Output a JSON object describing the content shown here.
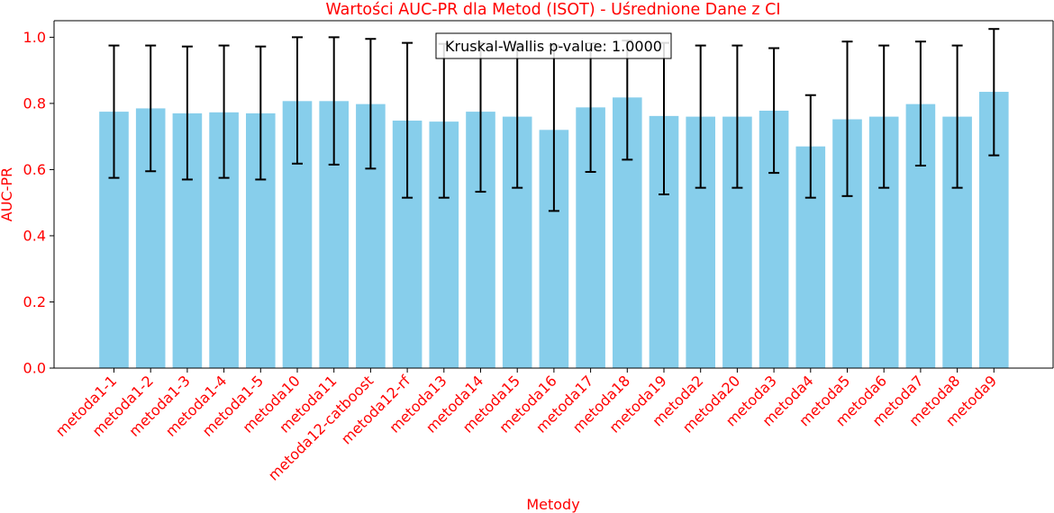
{
  "chart_data": {
    "type": "bar",
    "title": "Wartości AUC-PR dla Metod (ISOT) - Uśrednione Dane z CI",
    "xlabel": "Metody",
    "ylabel": "AUC-PR",
    "ylim": [
      0,
      1.05
    ],
    "yticks": [
      "0.0",
      "0.2",
      "0.4",
      "0.6",
      "0.8",
      "1.0"
    ],
    "grid": false,
    "annotation": "Kruskal-Wallis p-value: 1.0000",
    "colors": {
      "bar": "#87ceeb",
      "error_bar": "#000000",
      "label_text": "#ff0000",
      "axis": "#000000"
    },
    "categories": [
      "metoda1-1",
      "metoda1-2",
      "metoda1-3",
      "metoda1-4",
      "metoda1-5",
      "metoda10",
      "metoda11",
      "metoda12-catboost",
      "metoda12-rf",
      "metoda13",
      "metoda14",
      "metoda15",
      "metoda16",
      "metoda17",
      "metoda18",
      "metoda19",
      "metoda2",
      "metoda20",
      "metoda3",
      "metoda4",
      "metoda5",
      "metoda6",
      "metoda7",
      "metoda8",
      "metoda9"
    ],
    "values": [
      0.775,
      0.785,
      0.77,
      0.773,
      0.77,
      0.807,
      0.807,
      0.798,
      0.748,
      0.745,
      0.775,
      0.76,
      0.72,
      0.788,
      0.818,
      0.762,
      0.76,
      0.76,
      0.778,
      0.67,
      0.752,
      0.76,
      0.798,
      0.76,
      0.835
    ],
    "ci_lower": [
      0.575,
      0.595,
      0.57,
      0.575,
      0.57,
      0.618,
      0.615,
      0.603,
      0.515,
      0.515,
      0.533,
      0.545,
      0.475,
      0.593,
      0.63,
      0.525,
      0.545,
      0.545,
      0.59,
      0.515,
      0.52,
      0.545,
      0.612,
      0.545,
      0.643
    ],
    "ci_upper": [
      0.975,
      0.975,
      0.972,
      0.975,
      0.972,
      1.0,
      1.0,
      0.995,
      0.983,
      0.98,
      0.982,
      0.978,
      0.975,
      0.982,
      0.99,
      0.983,
      0.975,
      0.975,
      0.967,
      0.825,
      0.987,
      0.975,
      0.987,
      0.975,
      1.025
    ]
  }
}
